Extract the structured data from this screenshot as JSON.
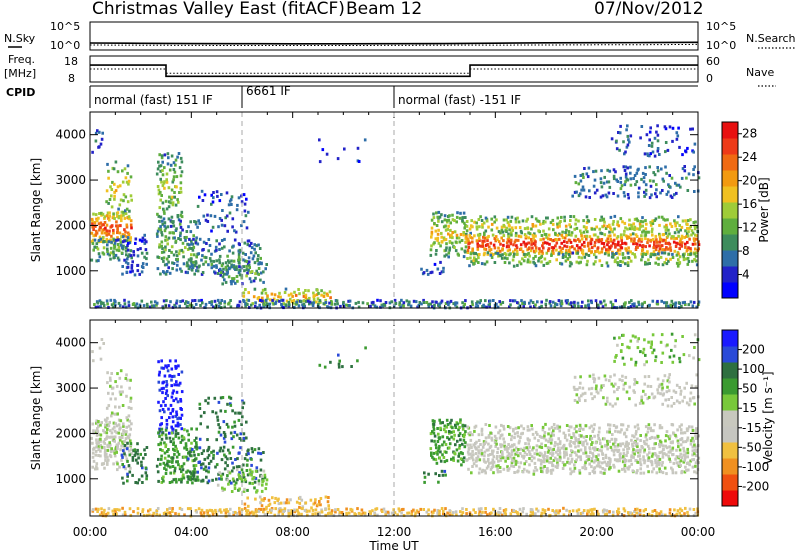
{
  "header": {
    "title": "Christmas Valley East (fitACF)",
    "beam": "Beam 12",
    "date": "07/Nov/2012"
  },
  "colors": {
    "power_scale": [
      "#0000ff",
      "#2222c8",
      "#2e6ea8",
      "#3d8c5c",
      "#5fae3e",
      "#9fcc38",
      "#f0c020",
      "#f29a10",
      "#f06a12",
      "#ee3a18",
      "#e81010"
    ],
    "velocity_scale": [
      "#1a1aff",
      "#2a4ad8",
      "#2e7040",
      "#3a9a30",
      "#78c83a",
      "#c8c8be",
      "#c6c6c0",
      "#f0c040",
      "#f09020",
      "#f05010",
      "#ee0a0a"
    ],
    "background": "#ffffff"
  },
  "chart_data": [
    {
      "type": "line",
      "name": "noise-panel",
      "left_label": "N.Sky",
      "right_label": "N.Search",
      "left_ticks": [
        "10^5",
        "10^0"
      ],
      "right_ticks": [
        "10^5",
        "10^0"
      ],
      "x": [
        0,
        2,
        4,
        6,
        8,
        10,
        12,
        14,
        16,
        18,
        20,
        22,
        24
      ],
      "sky": [
        1.25,
        1.2,
        1.15,
        1.12,
        1.1,
        1.1,
        1.12,
        1.15,
        1.22,
        1.28,
        1.3,
        1.32,
        1.38
      ],
      "search": [
        0.9,
        0.85,
        0.82,
        0.8,
        0.8,
        0.8,
        0.82,
        0.85,
        0.88,
        0.9,
        0.92,
        0.95,
        1.0
      ],
      "ylim": [
        0,
        5
      ]
    },
    {
      "type": "line",
      "name": "frequency-panel",
      "left_label": "Freq.",
      "left_unit": "[MHz]",
      "right_label": "Nave",
      "left_ticks": [
        "18",
        "8"
      ],
      "right_ticks": [
        "60",
        "0"
      ],
      "x": [
        0,
        3.0,
        3.0,
        15.0,
        15.0,
        24
      ],
      "freq": [
        14.5,
        14.5,
        10.2,
        10.2,
        14.5,
        14.5
      ],
      "nave_x": [
        0,
        3.0,
        3.0,
        15.0,
        15.0,
        24
      ],
      "nave": [
        30,
        30,
        20,
        20,
        30,
        30
      ],
      "ylim": [
        8,
        18
      ],
      "nave_lim": [
        0,
        60
      ]
    },
    {
      "type": "table",
      "name": "cpid-strip",
      "label": "CPID",
      "segments": [
        {
          "start": 0,
          "end": 6,
          "text": "normal (fast) 151 IF"
        },
        {
          "start": 6,
          "end": 12,
          "text": "6661 IF"
        },
        {
          "start": 12,
          "end": 24,
          "text": "normal (fast) -151 IF"
        }
      ]
    },
    {
      "type": "heatmap",
      "name": "power-panel",
      "ylabel": "Slant Range [km]",
      "yticks": [
        1000,
        2000,
        3000,
        4000
      ],
      "ylim": [
        180,
        4500
      ],
      "xlim": [
        0,
        24
      ],
      "colorbar_label": "Power [dB]",
      "colorbar_ticks": [
        4,
        8,
        12,
        16,
        20,
        24,
        28
      ],
      "colorbar_range": [
        0,
        30
      ]
    },
    {
      "type": "heatmap",
      "name": "velocity-panel",
      "ylabel": "Slant Range [km]",
      "yticks": [
        1000,
        2000,
        3000,
        4000
      ],
      "ylim": [
        180,
        4500
      ],
      "xlim": [
        0,
        24
      ],
      "colorbar_label": "Velocity [m s⁻¹]",
      "colorbar_ticks": [
        200,
        100,
        50,
        15,
        -15,
        -50,
        -100,
        -200
      ],
      "xlabel": "Time UT",
      "xticks": [
        "00:00",
        "04:00",
        "08:00",
        "12:00",
        "16:00",
        "20:00",
        "00:00"
      ]
    }
  ]
}
